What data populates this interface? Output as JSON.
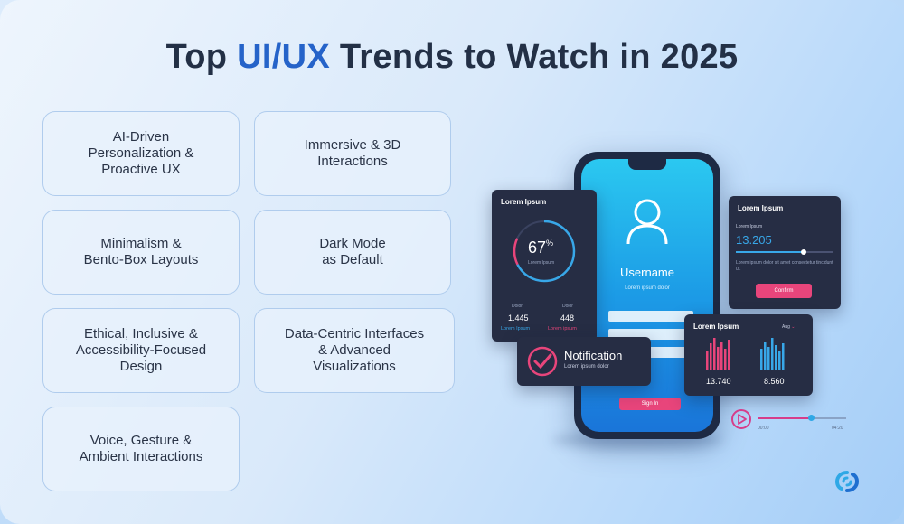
{
  "title": {
    "prefix": "Top",
    "accent": "UI/UX",
    "suffix": "Trends to Watch in 2025"
  },
  "trends": [
    "AI-Driven\nPersonalization &\nProactive UX",
    "Immersive & 3D\nInteractions",
    "Minimalism &\nBento-Box Layouts",
    "Dark Mode\nas Default",
    "Ethical, Inclusive &\nAccessibility-Focused\nDesign",
    "Data-Centric Interfaces\n& Advanced\nVisualizations",
    "Voice, Gesture &\nAmbient Interactions"
  ],
  "illustration": {
    "phone": {
      "username": "Username",
      "username_sub": "Lorem ipsum dolor",
      "signin": "Sign In"
    },
    "gauge_panel": {
      "title": "Lorem Ipsum",
      "percent": "67",
      "percent_unit": "%",
      "gauge_sub": "Lorem Ipsum",
      "left_label": "Dolor",
      "right_label": "Dolor",
      "left_value": "1.445",
      "right_value": "448",
      "left_caption": "Lorem Ipsum",
      "right_caption": "Lorem ipsum"
    },
    "slider_panel": {
      "title": "Lorem Ipsum",
      "label": "Lorem Ipsum",
      "value": "13.205",
      "body": "Lorem ipsum dolor sit amet consectetur tincidunt ut.",
      "button": "Confirm"
    },
    "notification": {
      "title": "Notification",
      "sub": "Lorem ipsum dolor"
    },
    "chart_panel": {
      "title": "Lorem Ipsum",
      "dropdown": "Aug",
      "value_left": "13.740",
      "value_right": "8.560"
    },
    "player": {
      "time_start": "00:00",
      "time_end": "04:20"
    }
  },
  "colors": {
    "title": "#233046",
    "accent": "#2563c9",
    "pink": "#e8457b",
    "blue": "#2fa8e6"
  }
}
